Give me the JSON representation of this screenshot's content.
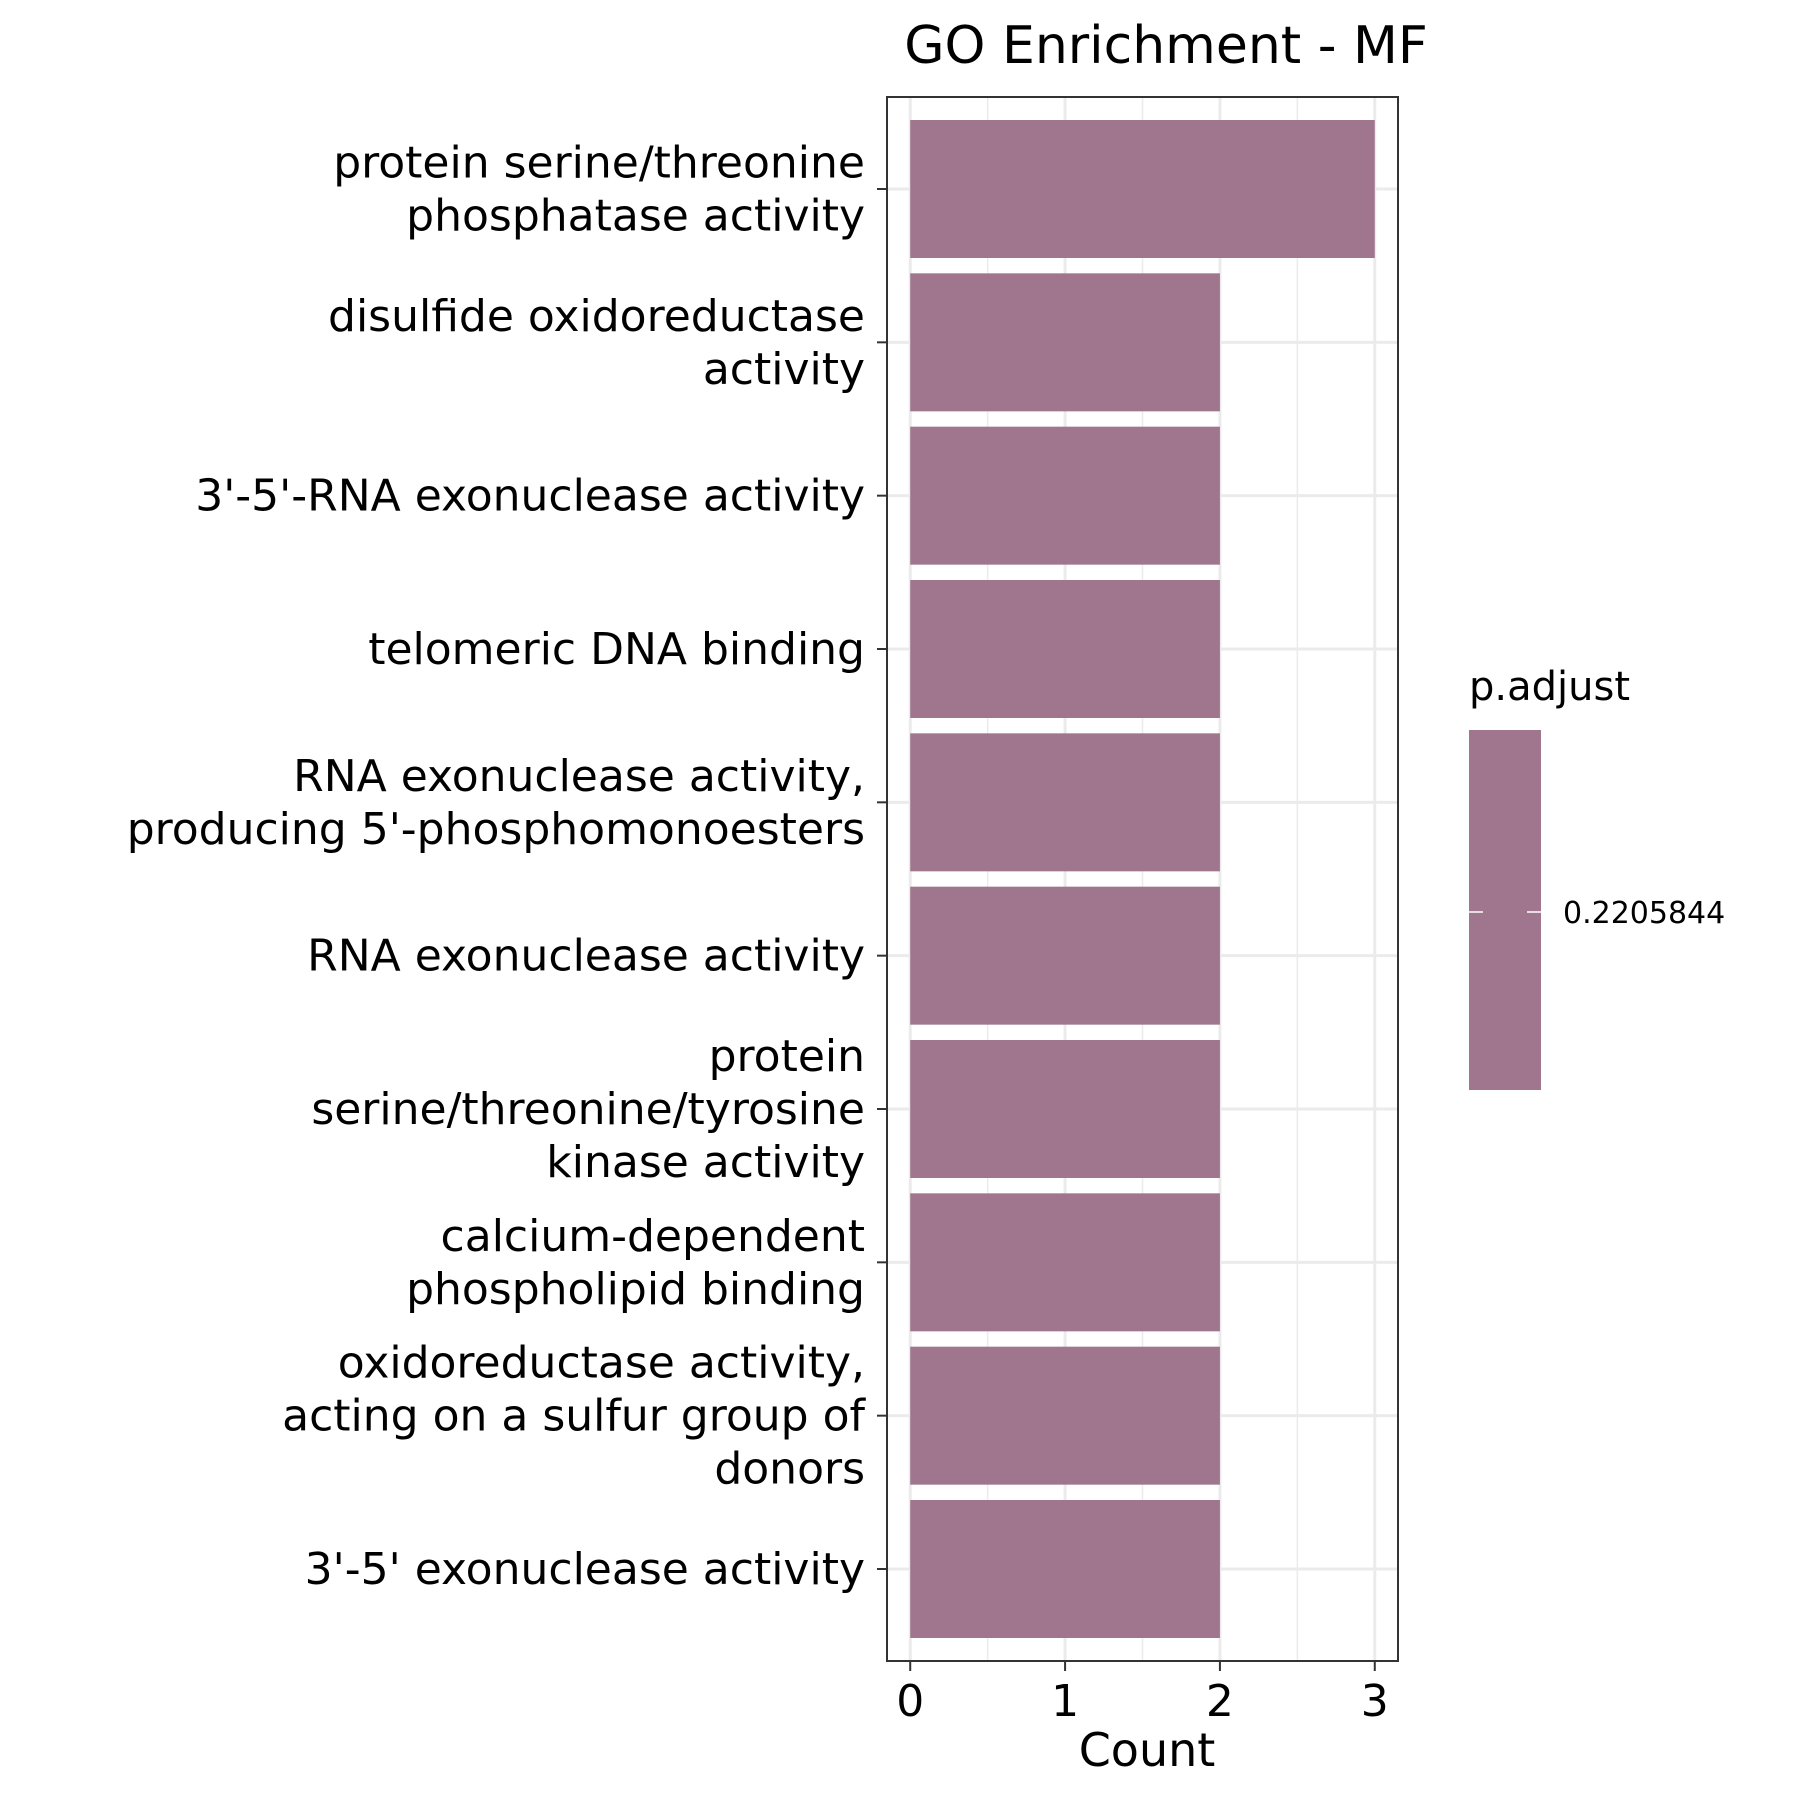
{
  "chart_data": {
    "type": "bar",
    "orientation": "horizontal",
    "title": "GO Enrichment - MF",
    "xlabel": "Count",
    "ylabel": "",
    "xlim": [
      -0.15,
      3.15
    ],
    "x_ticks": [
      "0",
      "1",
      "2",
      "3"
    ],
    "grid": true,
    "bar_color": "#a0768e",
    "categories": [
      [
        "protein serine/threonine",
        "phosphatase activity"
      ],
      [
        "disulfide oxidoreductase",
        "activity"
      ],
      [
        "3'-5'-RNA exonuclease activity"
      ],
      [
        "telomeric DNA binding"
      ],
      [
        "RNA exonuclease activity,",
        "producing 5'-phosphomonoesters"
      ],
      [
        "RNA exonuclease activity"
      ],
      [
        "protein",
        "serine/threonine/tyrosine",
        "kinase activity"
      ],
      [
        "calcium-dependent",
        "phospholipid binding"
      ],
      [
        "oxidoreductase activity,",
        "acting on a sulfur group of",
        "donors"
      ],
      [
        "3'-5' exonuclease activity"
      ]
    ],
    "values": [
      3,
      2,
      2,
      2,
      2,
      2,
      2,
      2,
      2,
      2
    ],
    "legend": {
      "title": "p.adjust",
      "position": "right",
      "tick_label": "0.2205844"
    }
  }
}
